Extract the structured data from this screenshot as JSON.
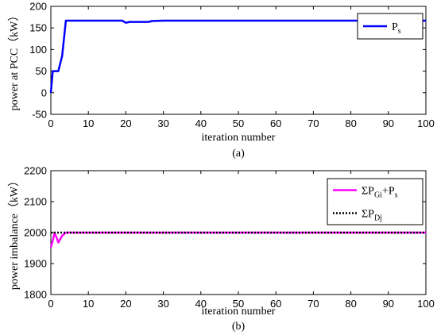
{
  "chart_data": [
    {
      "type": "line",
      "caption": "(a)",
      "xlabel": "iteration number",
      "ylabel": "power at PCC（kW）",
      "xlim": [
        0,
        100
      ],
      "ylim": [
        -50,
        200
      ],
      "xticks": [
        "0",
        "10",
        "20",
        "30",
        "40",
        "50",
        "60",
        "70",
        "80",
        "90",
        "100"
      ],
      "yticks": [
        "-50",
        "0",
        "50",
        "100",
        "150",
        "200"
      ],
      "legend_position": "top-right",
      "series": [
        {
          "name": "P",
          "name_sub": "s",
          "color": "#0000ff",
          "dash": "solid",
          "x": [
            0,
            0.5,
            1,
            2,
            3,
            4,
            10,
            19,
            20,
            21,
            26,
            27,
            30,
            100
          ],
          "y": [
            0,
            50,
            50,
            50,
            85,
            167,
            167,
            167,
            162,
            164,
            164,
            166,
            167,
            167
          ]
        }
      ]
    },
    {
      "type": "line",
      "caption": "(b)",
      "xlabel": "iteration number",
      "ylabel": "power imbalance（kW）",
      "xlim": [
        0,
        100
      ],
      "ylim": [
        1800,
        2200
      ],
      "xticks": [
        "0",
        "10",
        "20",
        "30",
        "40",
        "50",
        "60",
        "70",
        "80",
        "90",
        "100"
      ],
      "yticks": [
        "1800",
        "1900",
        "2000",
        "2100",
        "2200"
      ],
      "legend_position": "top-right",
      "series": [
        {
          "name": "ΣP",
          "name_sub": "Gi",
          "name_suffix": "+P",
          "name_suffix_sub": "s",
          "color": "#ff00ff",
          "dash": "solid",
          "x": [
            0,
            0.5,
            1,
            1.5,
            2,
            3,
            4,
            10,
            100
          ],
          "y": [
            1952,
            1975,
            1998,
            1985,
            1968,
            1990,
            2000,
            2000,
            2000
          ]
        },
        {
          "name": "ΣP",
          "name_sub": "Dj",
          "color": "#000000",
          "dash": "dotted",
          "x": [
            0,
            100
          ],
          "y": [
            2000,
            2000
          ]
        }
      ]
    }
  ]
}
